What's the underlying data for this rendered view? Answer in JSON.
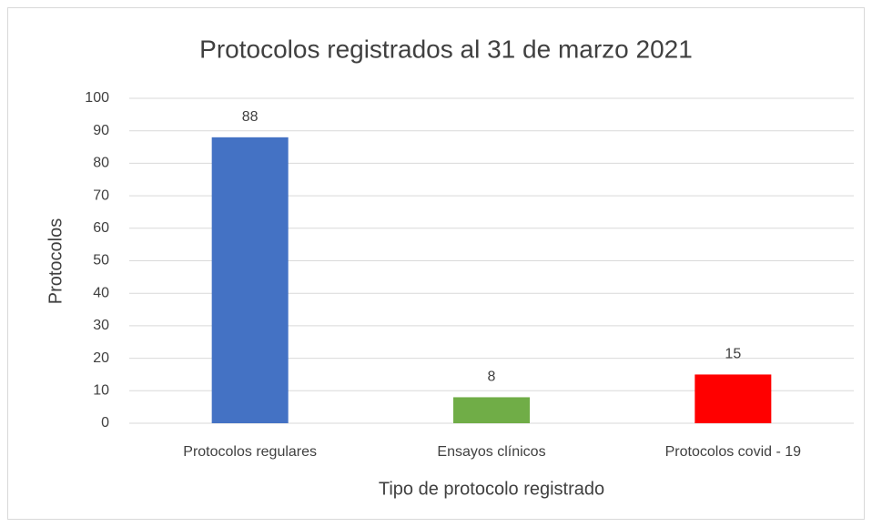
{
  "chart_data": {
    "type": "bar",
    "title": "Protocolos registrados al 31 de marzo 2021",
    "x_label": "Tipo de protocolo registrado",
    "y_label": "Protocolos",
    "categories": [
      "Protocolos regulares",
      "Ensayos clínicos",
      "Protocolos covid - 19"
    ],
    "values": [
      88,
      8,
      15
    ],
    "colors": [
      "#4472c4",
      "#70ad47",
      "#ff0000"
    ],
    "ylim": [
      0,
      100
    ],
    "yticks": [
      0,
      10,
      20,
      30,
      40,
      50,
      60,
      70,
      80,
      90,
      100
    ],
    "grid": true
  }
}
